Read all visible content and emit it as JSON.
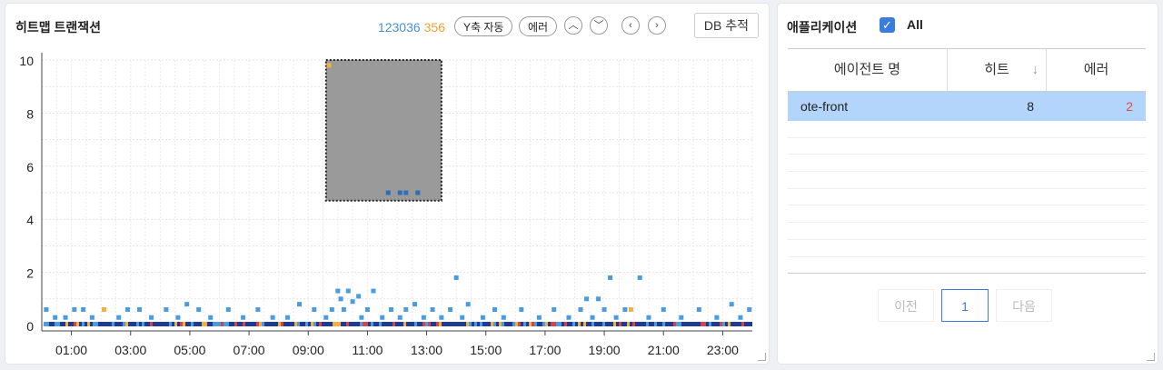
{
  "heatmap": {
    "title": "히트맵 트랜잭션",
    "count_total": "123036",
    "count_error": "356",
    "y_auto_label": "Y축 자동",
    "error_label": "에러",
    "db_trace_label": "DB 추적",
    "up_icon": "chevron-up-icon",
    "down_icon": "chevron-down-icon",
    "prev_icon": "chevron-left-icon",
    "next_icon": "chevron-right-icon"
  },
  "colors": {
    "accent": "#3b7ddd",
    "point_blue": "#4a9be0",
    "point_dark": "#1f3a93",
    "point_orange": "#f3b13b",
    "point_red": "#d64545",
    "selection_fill": "#9a9a9a",
    "error_text": "#e04b4b"
  },
  "chart_data": {
    "type": "heatmap",
    "title": "",
    "xlabel": "",
    "ylabel": "",
    "xlim": [
      0,
      24
    ],
    "ylim": [
      0,
      10
    ],
    "x_ticks": [
      "01:00",
      "03:00",
      "05:00",
      "07:00",
      "09:00",
      "11:00",
      "13:00",
      "15:00",
      "17:00",
      "19:00",
      "21:00",
      "23:00"
    ],
    "y_ticks": [
      0,
      2,
      4,
      6,
      8,
      10
    ],
    "grid": true,
    "selection_box": {
      "x_range": [
        9.6,
        13.5
      ],
      "y_range": [
        4.7,
        10
      ]
    },
    "points": [
      {
        "x": 0.15,
        "y": 0.6,
        "c": "blue"
      },
      {
        "x": 0.45,
        "y": 0.3,
        "c": "blue"
      },
      {
        "x": 0.8,
        "y": 0.3,
        "c": "blue"
      },
      {
        "x": 1.1,
        "y": 0.6,
        "c": "blue"
      },
      {
        "x": 1.4,
        "y": 0.6,
        "c": "blue"
      },
      {
        "x": 1.7,
        "y": 0.3,
        "c": "blue"
      },
      {
        "x": 2.1,
        "y": 0.6,
        "c": "orange"
      },
      {
        "x": 2.6,
        "y": 0.3,
        "c": "blue"
      },
      {
        "x": 2.9,
        "y": 0.6,
        "c": "blue"
      },
      {
        "x": 3.3,
        "y": 0.6,
        "c": "blue"
      },
      {
        "x": 3.7,
        "y": 0.3,
        "c": "blue"
      },
      {
        "x": 4.2,
        "y": 0.6,
        "c": "blue"
      },
      {
        "x": 4.6,
        "y": 0.3,
        "c": "blue"
      },
      {
        "x": 4.9,
        "y": 0.8,
        "c": "blue"
      },
      {
        "x": 5.3,
        "y": 0.6,
        "c": "blue"
      },
      {
        "x": 5.7,
        "y": 0.3,
        "c": "blue"
      },
      {
        "x": 6.3,
        "y": 0.6,
        "c": "blue"
      },
      {
        "x": 6.8,
        "y": 0.3,
        "c": "blue"
      },
      {
        "x": 7.3,
        "y": 0.6,
        "c": "blue"
      },
      {
        "x": 7.8,
        "y": 0.3,
        "c": "blue"
      },
      {
        "x": 8.3,
        "y": 0.3,
        "c": "blue"
      },
      {
        "x": 8.7,
        "y": 0.8,
        "c": "blue"
      },
      {
        "x": 9.2,
        "y": 0.6,
        "c": "blue"
      },
      {
        "x": 9.6,
        "y": 0.3,
        "c": "blue"
      },
      {
        "x": 9.8,
        "y": 0.6,
        "c": "blue"
      },
      {
        "x": 10.0,
        "y": 1.3,
        "c": "blue"
      },
      {
        "x": 10.1,
        "y": 1.0,
        "c": "blue"
      },
      {
        "x": 10.2,
        "y": 0.6,
        "c": "blue"
      },
      {
        "x": 10.35,
        "y": 1.3,
        "c": "blue"
      },
      {
        "x": 10.5,
        "y": 0.9,
        "c": "blue"
      },
      {
        "x": 10.7,
        "y": 1.1,
        "c": "blue"
      },
      {
        "x": 10.8,
        "y": 0.3,
        "c": "blue"
      },
      {
        "x": 11.0,
        "y": 0.6,
        "c": "blue"
      },
      {
        "x": 11.2,
        "y": 1.3,
        "c": "blue"
      },
      {
        "x": 11.5,
        "y": 0.3,
        "c": "blue"
      },
      {
        "x": 11.8,
        "y": 0.6,
        "c": "blue"
      },
      {
        "x": 12.1,
        "y": 0.3,
        "c": "blue"
      },
      {
        "x": 12.3,
        "y": 0.6,
        "c": "blue"
      },
      {
        "x": 12.6,
        "y": 0.8,
        "c": "blue"
      },
      {
        "x": 12.9,
        "y": 0.3,
        "c": "blue"
      },
      {
        "x": 13.2,
        "y": 0.6,
        "c": "blue"
      },
      {
        "x": 13.5,
        "y": 0.3,
        "c": "blue"
      },
      {
        "x": 13.8,
        "y": 0.6,
        "c": "blue"
      },
      {
        "x": 14.0,
        "y": 1.8,
        "c": "blue"
      },
      {
        "x": 14.2,
        "y": 0.3,
        "c": "blue"
      },
      {
        "x": 14.4,
        "y": 0.8,
        "c": "blue"
      },
      {
        "x": 14.9,
        "y": 0.3,
        "c": "blue"
      },
      {
        "x": 15.3,
        "y": 0.6,
        "c": "blue"
      },
      {
        "x": 15.6,
        "y": 0.3,
        "c": "blue"
      },
      {
        "x": 16.2,
        "y": 0.6,
        "c": "blue"
      },
      {
        "x": 16.8,
        "y": 0.3,
        "c": "blue"
      },
      {
        "x": 17.3,
        "y": 0.6,
        "c": "blue"
      },
      {
        "x": 17.8,
        "y": 0.3,
        "c": "blue"
      },
      {
        "x": 18.2,
        "y": 0.6,
        "c": "blue"
      },
      {
        "x": 18.4,
        "y": 1.0,
        "c": "blue"
      },
      {
        "x": 18.6,
        "y": 0.3,
        "c": "blue"
      },
      {
        "x": 18.8,
        "y": 1.0,
        "c": "blue"
      },
      {
        "x": 19.0,
        "y": 0.6,
        "c": "blue"
      },
      {
        "x": 19.2,
        "y": 1.8,
        "c": "blue"
      },
      {
        "x": 19.4,
        "y": 0.3,
        "c": "blue"
      },
      {
        "x": 19.7,
        "y": 0.6,
        "c": "blue"
      },
      {
        "x": 19.9,
        "y": 0.6,
        "c": "orange"
      },
      {
        "x": 20.2,
        "y": 1.8,
        "c": "blue"
      },
      {
        "x": 20.5,
        "y": 0.3,
        "c": "blue"
      },
      {
        "x": 21.0,
        "y": 0.6,
        "c": "blue"
      },
      {
        "x": 21.6,
        "y": 0.3,
        "c": "blue"
      },
      {
        "x": 22.2,
        "y": 0.6,
        "c": "blue"
      },
      {
        "x": 22.8,
        "y": 0.3,
        "c": "blue"
      },
      {
        "x": 23.3,
        "y": 0.8,
        "c": "blue"
      },
      {
        "x": 23.6,
        "y": 0.3,
        "c": "blue"
      },
      {
        "x": 23.9,
        "y": 0.6,
        "c": "blue"
      },
      {
        "x": 11.7,
        "y": 5.0,
        "c": "blue"
      },
      {
        "x": 12.1,
        "y": 5.0,
        "c": "blue"
      },
      {
        "x": 12.3,
        "y": 5.0,
        "c": "blue"
      },
      {
        "x": 12.7,
        "y": 5.0,
        "c": "blue"
      },
      {
        "x": 9.7,
        "y": 9.8,
        "c": "orange"
      }
    ]
  },
  "app_panel": {
    "title": "애플리케이션",
    "all_label": "All",
    "check_icon": "checkmark-icon",
    "columns": [
      "에이전트 명",
      "히트",
      "에러"
    ],
    "sort_icon": "arrow-down-icon",
    "rows": [
      {
        "agent": "ote-front",
        "hits": "8",
        "errors": "2"
      }
    ],
    "pager": {
      "prev": "이전",
      "current": "1",
      "next": "다음"
    }
  }
}
